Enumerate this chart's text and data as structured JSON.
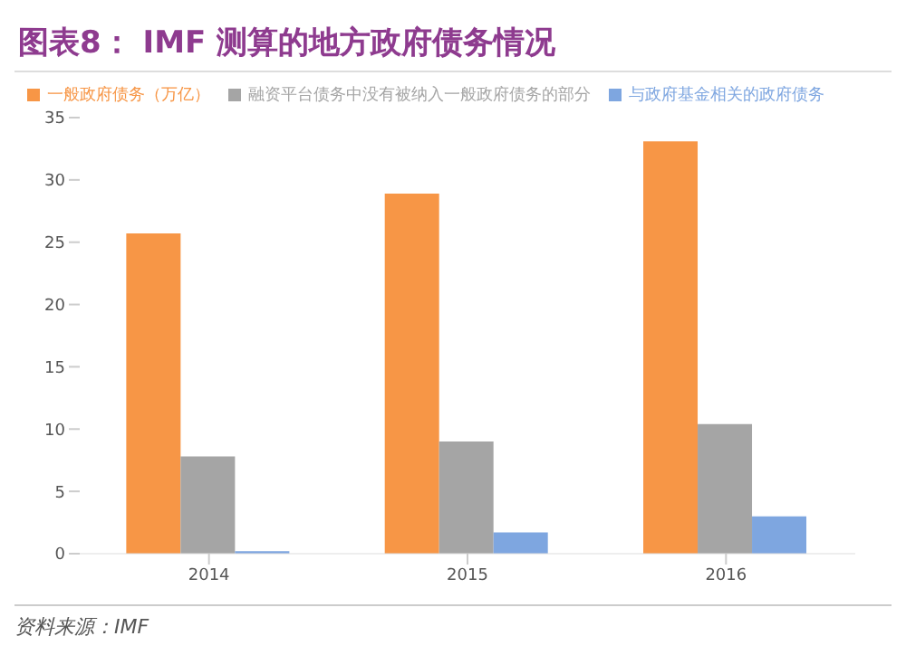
{
  "chart_data": {
    "type": "bar",
    "title": "图表8：  IMF 测算的地方政府债务情况",
    "categories": [
      "2014",
      "2015",
      "2016"
    ],
    "series": [
      {
        "name": "一般政府债务（万亿）",
        "color": "#f79646",
        "values": [
          25.7,
          28.9,
          33.1
        ]
      },
      {
        "name": "融资平台债务中没有被纳入一般政府债务的部分",
        "color": "#a5a5a5",
        "values": [
          7.8,
          9.0,
          10.4
        ]
      },
      {
        "name": "与政府基金相关的政府债务",
        "color": "#7ea6e0",
        "values": [
          0.2,
          1.7,
          3.0
        ]
      }
    ],
    "ylim": [
      0,
      35
    ],
    "yticks": [
      0,
      5,
      10,
      15,
      20,
      25,
      30,
      35
    ],
    "grid": false,
    "legend": "top",
    "annotations": [
      "资料来源：IMF"
    ]
  }
}
